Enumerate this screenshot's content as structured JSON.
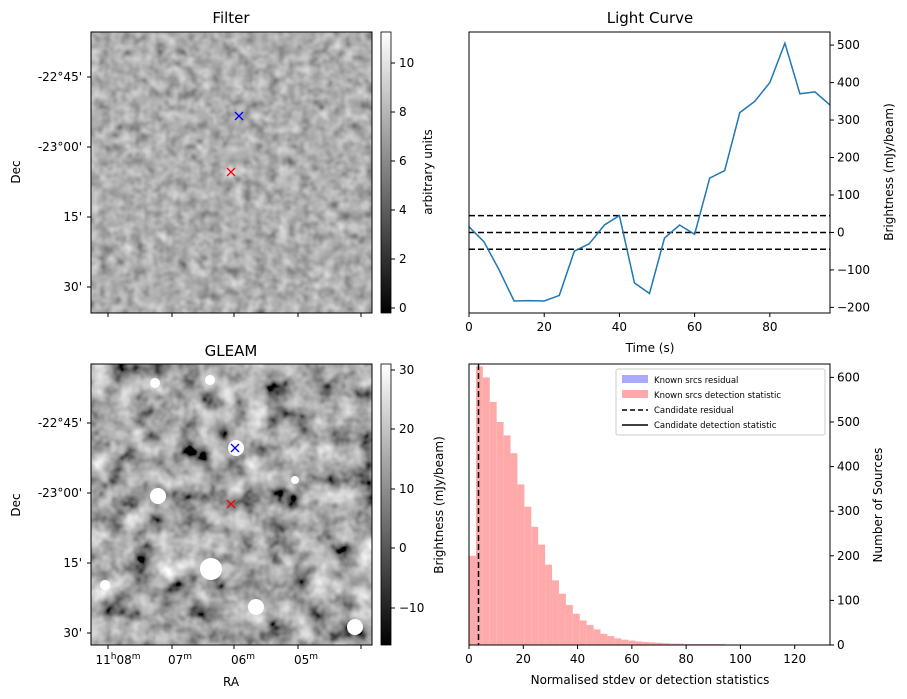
{
  "panels": {
    "filter": {
      "title": "Filter",
      "ylabel": "Dec",
      "dec_ticks": [
        "-22°45'",
        "-23°00'",
        "15'",
        "30'"
      ],
      "colorbar": {
        "label": "arbitrary units",
        "ticks": [
          "0",
          "2",
          "4",
          "6",
          "8",
          "10"
        ],
        "range": [
          -0.3,
          11.2
        ],
        "cmap": "gray"
      },
      "markers": [
        {
          "symbol": "x",
          "color": "#0000ff"
        },
        {
          "symbol": "x",
          "color": "#ff0000"
        }
      ]
    },
    "gleam": {
      "title": "GLEAM",
      "ylabel": "Dec",
      "xlabel": "RA",
      "dec_ticks": [
        "-22°45'",
        "-23°00'",
        "15'",
        "30'"
      ],
      "ra_ticks": [
        {
          "main": "11",
          "sup1": "h",
          "mid": "08",
          "sup2": "m"
        },
        {
          "main": "07",
          "sup1": "",
          "mid": "",
          "sup2": "m"
        },
        {
          "main": "06",
          "sup1": "",
          "mid": "",
          "sup2": "m"
        },
        {
          "main": "05",
          "sup1": "",
          "mid": "",
          "sup2": "m"
        }
      ],
      "colorbar": {
        "label": "",
        "ticks": [
          "−10",
          "0",
          "10",
          "20",
          "30"
        ],
        "range": [
          -16,
          31
        ],
        "cmap": "gray"
      },
      "markers": [
        {
          "symbol": "x",
          "color": "#0000ff"
        },
        {
          "symbol": "x",
          "color": "#ff0000"
        }
      ]
    }
  },
  "chart_data": [
    {
      "type": "line",
      "title": "Light Curve",
      "xlabel": "Time (s)",
      "ylabel": "Brightness (mJy/beam)",
      "xlim": [
        0,
        96
      ],
      "ylim": [
        -215,
        535
      ],
      "xticks": [
        "0",
        "20",
        "40",
        "60",
        "80"
      ],
      "yticks": [
        "−200",
        "−100",
        "0",
        "100",
        "200",
        "300",
        "400",
        "500"
      ],
      "color": "#1f77b4",
      "series": [
        {
          "x": [
            0,
            4,
            8,
            12,
            16,
            20,
            24,
            28,
            32,
            36,
            40,
            44,
            48,
            52,
            56,
            60,
            64,
            68,
            72,
            76,
            80,
            84,
            88,
            92,
            96
          ],
          "values": [
            15,
            -25,
            -100,
            -183,
            -182,
            -183,
            -168,
            -50,
            -30,
            20,
            45,
            -135,
            -163,
            -15,
            20,
            -5,
            145,
            165,
            320,
            350,
            400,
            505,
            370,
            375,
            340
          ]
        }
      ],
      "hlines": [
        {
          "y": 45,
          "style": "dashed"
        },
        {
          "y": 0,
          "style": "dashed"
        },
        {
          "y": -45,
          "style": "dashed"
        }
      ]
    },
    {
      "type": "bar",
      "xlabel": "Normalised stdev or detection statistics",
      "ylabel": "Brightness (mJy/beam)",
      "ylabel_right": "Number of Sources",
      "xlim": [
        0,
        133
      ],
      "ylim": [
        0,
        630
      ],
      "xticks": [
        "0",
        "20",
        "40",
        "60",
        "80",
        "100",
        "120"
      ],
      "yticks_right": [
        "0",
        "100",
        "200",
        "300",
        "400",
        "500",
        "600"
      ],
      "bin_width": 2.55,
      "bin_start": 0,
      "legend_position": "top-right",
      "legend": [
        "Known srcs residual",
        "Known srcs detection statistic",
        "Candidate residual",
        "Candidate detection statistic"
      ],
      "series": [
        {
          "name": "Known srcs residual",
          "color": "#aaaaff",
          "values": []
        },
        {
          "name": "Known srcs detection statistic",
          "color": "#ffaaaa",
          "values": [
            200,
            625,
            600,
            545,
            500,
            470,
            430,
            360,
            310,
            265,
            225,
            180,
            145,
            115,
            90,
            70,
            55,
            45,
            35,
            25,
            20,
            15,
            12,
            10,
            8,
            7,
            6,
            5,
            4,
            3,
            3,
            2,
            2,
            2,
            2,
            2,
            2,
            1,
            1,
            1,
            1,
            0,
            0,
            0,
            0,
            1,
            0,
            0,
            0,
            1
          ]
        }
      ],
      "vlines": [
        {
          "name": "Candidate residual",
          "x": 3.5,
          "style": "dashed"
        }
      ]
    }
  ]
}
